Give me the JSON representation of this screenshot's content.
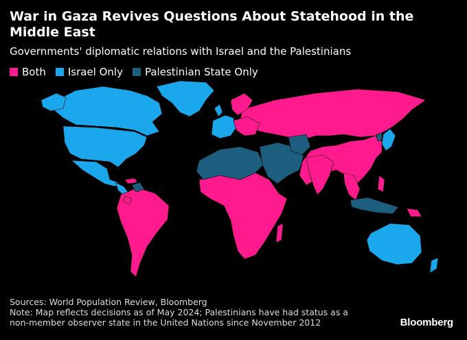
{
  "header": {
    "title": "War in Gaza Revives Questions About Statehood in the Middle East",
    "subtitle": "Governments' diplomatic relations with Israel and the Palestinians"
  },
  "legend": [
    {
      "label": "Both",
      "color": "#ff1b8d"
    },
    {
      "label": "Israel Only",
      "color": "#1aa7ec"
    },
    {
      "label": "Palestinian State Only",
      "color": "#1d5e7e"
    }
  ],
  "map": {
    "background": "#000000",
    "no_data_color": "#000000"
  },
  "footer": {
    "sources": "Sources: World Population Review, Bloomberg",
    "note_line1": "Note: Map reflects decisions as of May 2024; Palestinians have had status as a",
    "note_line2": "non-member observer state in the United Nations since November 2012",
    "logo": "Bloomberg"
  }
}
